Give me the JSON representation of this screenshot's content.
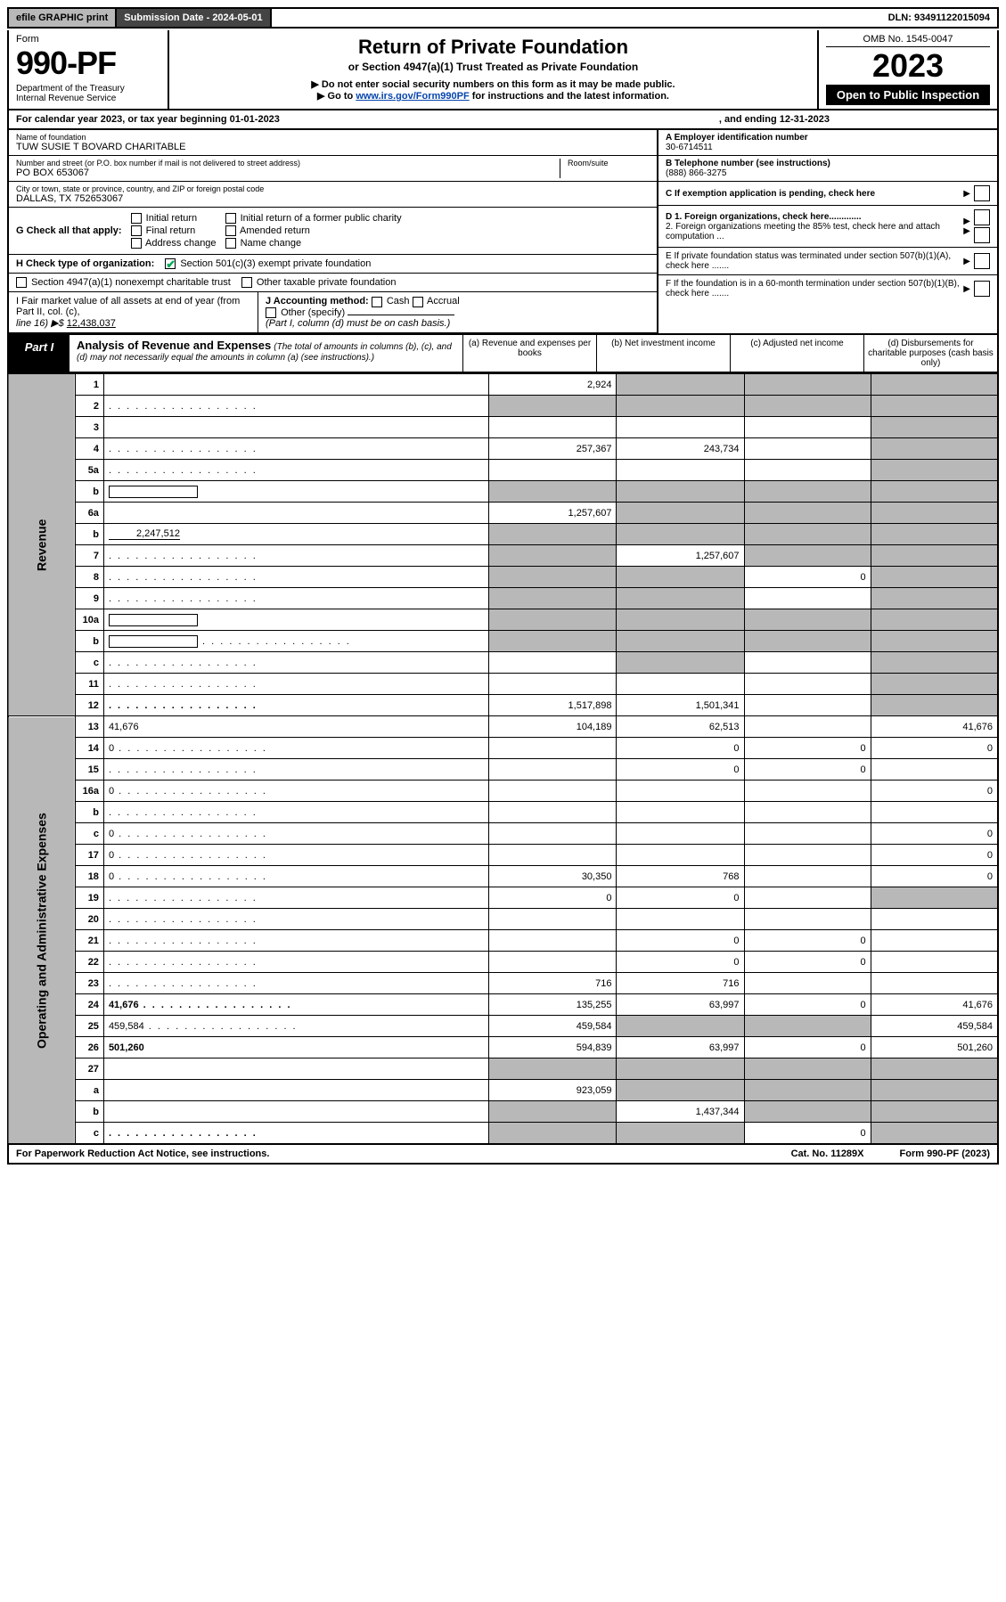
{
  "topbar": {
    "efile": "efile GRAPHIC print",
    "submission": "Submission Date - 2024-05-01",
    "dln": "DLN: 93491122015094"
  },
  "header": {
    "form_word": "Form",
    "form_num": "990-PF",
    "dept": "Department of the Treasury\nInternal Revenue Service",
    "title": "Return of Private Foundation",
    "sub1": "or Section 4947(a)(1) Trust Treated as Private Foundation",
    "sub2": "▶ Do not enter social security numbers on this form as it may be made public.",
    "sub3_pre": "▶ Go to ",
    "sub3_link": "www.irs.gov/Form990PF",
    "sub3_post": " for instructions and the latest information.",
    "omb": "OMB No. 1545-0047",
    "year": "2023",
    "open": "Open to Public Inspection"
  },
  "calyear": {
    "text": "For calendar year 2023, or tax year beginning 01-01-2023",
    "ending": ", and ending 12-31-2023"
  },
  "info": {
    "name_lbl": "Name of foundation",
    "name": "TUW SUSIE T BOVARD CHARITABLE",
    "addr_lbl": "Number and street (or P.O. box number if mail is not delivered to street address)",
    "addr": "PO BOX 653067",
    "room_lbl": "Room/suite",
    "city_lbl": "City or town, state or province, country, and ZIP or foreign postal code",
    "city": "DALLAS, TX  752653067",
    "a_lbl": "A Employer identification number",
    "a_val": "30-6714511",
    "b_lbl": "B Telephone number (see instructions)",
    "b_val": "(888) 866-3275",
    "c_lbl": "C If exemption application is pending, check here",
    "d1": "D 1. Foreign organizations, check here.............",
    "d2": "2. Foreign organizations meeting the 85% test, check here and attach computation ...",
    "e": "E  If private foundation status was terminated under section 507(b)(1)(A), check here .......",
    "f": "F  If the foundation is in a 60-month termination under section 507(b)(1)(B), check here .......",
    "g_lbl": "G Check all that apply:",
    "g_opts": [
      "Initial return",
      "Initial return of a former public charity",
      "Final return",
      "Amended return",
      "Address change",
      "Name change"
    ],
    "h_lbl": "H Check type of organization:",
    "h_opts": [
      "Section 501(c)(3) exempt private foundation",
      "Section 4947(a)(1) nonexempt charitable trust",
      "Other taxable private foundation"
    ],
    "i_lbl": "I Fair market value of all assets at end of year (from Part II, col. (c),",
    "i_line": "line 16) ▶$",
    "i_val": "12,438,037",
    "j_lbl": "J Accounting method:",
    "j_opts": [
      "Cash",
      "Accrual"
    ],
    "j_other": "Other (specify)",
    "j_note": "(Part I, column (d) must be on cash basis.)"
  },
  "part1": {
    "label": "Part I",
    "title": "Analysis of Revenue and Expenses",
    "note": "(The total of amounts in columns (b), (c), and (d) may not necessarily equal the amounts in column (a) (see instructions).)",
    "col_a": "(a)   Revenue and expenses per books",
    "col_b": "(b)   Net investment income",
    "col_c": "(c)  Adjusted net income",
    "col_d": "(d)  Disbursements for charitable purposes (cash basis only)"
  },
  "side_labels": {
    "revenue": "Revenue",
    "expenses": "Operating and Administrative Expenses"
  },
  "rows": [
    {
      "n": "1",
      "d": "",
      "a": "2,924",
      "b": "",
      "c": "",
      "ga": false,
      "gb": true,
      "gc": true,
      "gd": true
    },
    {
      "n": "2",
      "d": "",
      "dots": true,
      "a": "",
      "b": "",
      "c": "",
      "ga": true,
      "gb": true,
      "gc": true,
      "gd": true,
      "bold_not": true
    },
    {
      "n": "3",
      "d": "",
      "a": "",
      "b": "",
      "c": "",
      "gd": true
    },
    {
      "n": "4",
      "d": "",
      "dots": true,
      "a": "257,367",
      "b": "243,734",
      "c": "",
      "gd": true
    },
    {
      "n": "5a",
      "d": "",
      "dots": true,
      "a": "",
      "b": "",
      "c": "",
      "gd": true
    },
    {
      "n": "b",
      "d": "",
      "inline_box": true,
      "a": "",
      "b": "",
      "c": "",
      "ga": true,
      "gb": true,
      "gc": true,
      "gd": true
    },
    {
      "n": "6a",
      "d": "",
      "a": "1,257,607",
      "b": "",
      "c": "",
      "gb": true,
      "gc": true,
      "gd": true
    },
    {
      "n": "b",
      "d": "",
      "inline_val": "2,247,512",
      "a": "",
      "b": "",
      "c": "",
      "ga": true,
      "gb": true,
      "gc": true,
      "gd": true
    },
    {
      "n": "7",
      "d": "",
      "dots": true,
      "a": "",
      "b": "1,257,607",
      "c": "",
      "ga": true,
      "gc": true,
      "gd": true
    },
    {
      "n": "8",
      "d": "",
      "dots": true,
      "a": "",
      "b": "",
      "c": "0",
      "ga": true,
      "gb": true,
      "gd": true
    },
    {
      "n": "9",
      "d": "",
      "dots": true,
      "a": "",
      "b": "",
      "c": "",
      "ga": true,
      "gb": true,
      "gd": true
    },
    {
      "n": "10a",
      "d": "",
      "inline_box": true,
      "a": "",
      "b": "",
      "c": "",
      "ga": true,
      "gb": true,
      "gc": true,
      "gd": true
    },
    {
      "n": "b",
      "d": "",
      "dots": true,
      "inline_box": true,
      "a": "",
      "b": "",
      "c": "",
      "ga": true,
      "gb": true,
      "gc": true,
      "gd": true
    },
    {
      "n": "c",
      "d": "",
      "dots": true,
      "a": "",
      "b": "",
      "c": "",
      "gb": true,
      "gd": true
    },
    {
      "n": "11",
      "d": "",
      "dots": true,
      "a": "",
      "b": "",
      "c": "",
      "gd": true
    },
    {
      "n": "12",
      "d": "",
      "dots": true,
      "bold": true,
      "a": "1,517,898",
      "b": "1,501,341",
      "c": "",
      "gd": true
    },
    {
      "n": "13",
      "d": "41,676",
      "a": "104,189",
      "b": "62,513",
      "c": ""
    },
    {
      "n": "14",
      "d": "0",
      "dots": true,
      "a": "",
      "b": "0",
      "c": "0"
    },
    {
      "n": "15",
      "d": "",
      "dots": true,
      "a": "",
      "b": "0",
      "c": "0"
    },
    {
      "n": "16a",
      "d": "0",
      "dots": true,
      "a": "",
      "b": "",
      "c": ""
    },
    {
      "n": "b",
      "d": "",
      "dots": true,
      "a": "",
      "b": "",
      "c": ""
    },
    {
      "n": "c",
      "d": "0",
      "dots": true,
      "a": "",
      "b": "",
      "c": ""
    },
    {
      "n": "17",
      "d": "0",
      "dots": true,
      "a": "",
      "b": "",
      "c": ""
    },
    {
      "n": "18",
      "d": "0",
      "dots": true,
      "a": "30,350",
      "b": "768",
      "c": ""
    },
    {
      "n": "19",
      "d": "",
      "dots": true,
      "a": "0",
      "b": "0",
      "c": "",
      "gd": true
    },
    {
      "n": "20",
      "d": "",
      "dots": true,
      "a": "",
      "b": "",
      "c": ""
    },
    {
      "n": "21",
      "d": "",
      "dots": true,
      "a": "",
      "b": "0",
      "c": "0"
    },
    {
      "n": "22",
      "d": "",
      "dots": true,
      "a": "",
      "b": "0",
      "c": "0"
    },
    {
      "n": "23",
      "d": "",
      "dots": true,
      "a": "716",
      "b": "716",
      "c": ""
    },
    {
      "n": "24",
      "d": "41,676",
      "dots": true,
      "bold": true,
      "a": "135,255",
      "b": "63,997",
      "c": "0"
    },
    {
      "n": "25",
      "d": "459,584",
      "dots": true,
      "a": "459,584",
      "b": "",
      "c": "",
      "gb": true,
      "gc": true
    },
    {
      "n": "26",
      "d": "501,260",
      "bold": true,
      "a": "594,839",
      "b": "63,997",
      "c": "0"
    },
    {
      "n": "27",
      "d": "",
      "a": "",
      "b": "",
      "c": "",
      "ga": true,
      "gb": true,
      "gc": true,
      "gd": true
    },
    {
      "n": "a",
      "d": "",
      "bold": true,
      "a": "923,059",
      "b": "",
      "c": "",
      "gb": true,
      "gc": true,
      "gd": true
    },
    {
      "n": "b",
      "d": "",
      "bold": true,
      "a": "",
      "b": "1,437,344",
      "c": "",
      "ga": true,
      "gc": true,
      "gd": true
    },
    {
      "n": "c",
      "d": "",
      "dots": true,
      "bold": true,
      "a": "",
      "b": "",
      "c": "0",
      "ga": true,
      "gb": true,
      "gd": true
    }
  ],
  "footer": {
    "left": "For Paperwork Reduction Act Notice, see instructions.",
    "mid": "Cat. No. 11289X",
    "right": "Form 990-PF (2023)"
  },
  "colors": {
    "grey": "#b8b8b8",
    "black": "#000000",
    "link": "#0645ad",
    "check": "#00aa55"
  }
}
